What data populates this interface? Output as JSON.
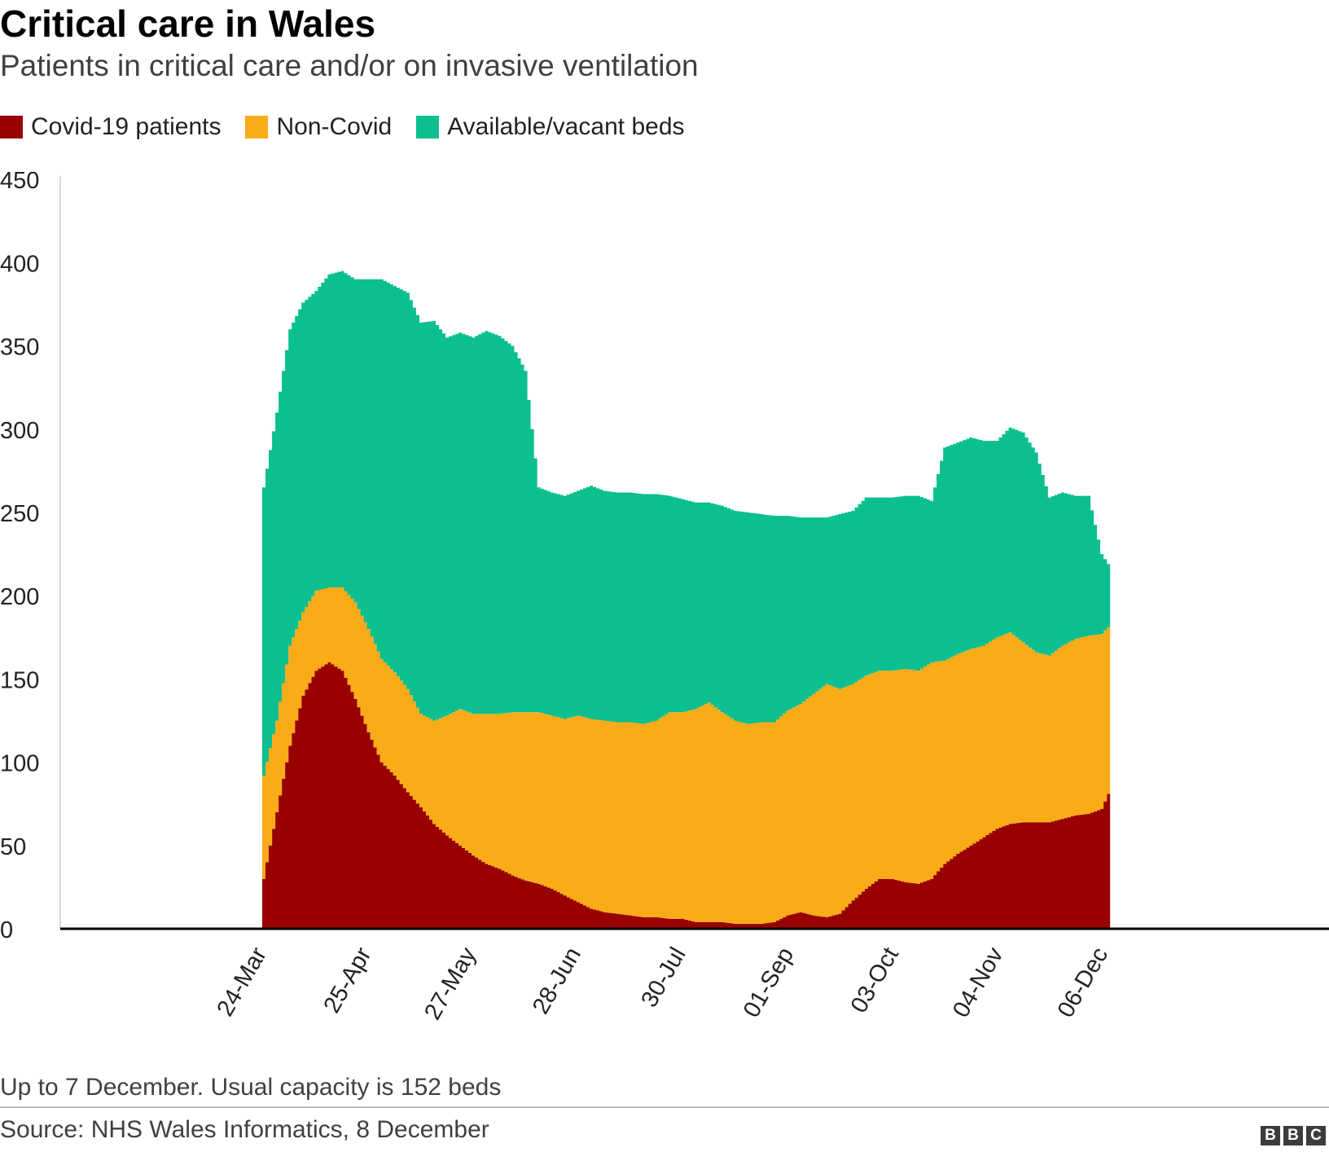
{
  "chart_data": {
    "type": "area",
    "stacked": true,
    "title": "Critical care in Wales",
    "subtitle": "Patients in critical care and/or on invasive ventilation",
    "x_tick_labels": [
      "24-Mar",
      "25-Apr",
      "27-May",
      "28-Jun",
      "30-Jul",
      "01-Sep",
      "03-Oct",
      "04-Nov",
      "06-Dec"
    ],
    "y_tick_labels": [
      "0",
      "50",
      "100",
      "150",
      "200",
      "250",
      "300",
      "350",
      "400",
      "450"
    ],
    "ylim": [
      0,
      450
    ],
    "grid": false,
    "legend_position": "top-left",
    "x_day_range": [
      "24-Mar",
      "07-Dec"
    ],
    "series": [
      {
        "name": "Covid-19 patients",
        "color": "#990000",
        "points": [
          [
            "24-Mar",
            30
          ],
          [
            "28-Mar",
            70
          ],
          [
            "01-Apr",
            110
          ],
          [
            "05-Apr",
            140
          ],
          [
            "09-Apr",
            155
          ],
          [
            "13-Apr",
            160
          ],
          [
            "17-Apr",
            155
          ],
          [
            "21-Apr",
            138
          ],
          [
            "25-Apr",
            118
          ],
          [
            "29-Apr",
            100
          ],
          [
            "03-May",
            92
          ],
          [
            "07-May",
            82
          ],
          [
            "11-May",
            73
          ],
          [
            "15-May",
            63
          ],
          [
            "19-May",
            56
          ],
          [
            "23-May",
            50
          ],
          [
            "27-May",
            44
          ],
          [
            "31-May",
            39
          ],
          [
            "04-Jun",
            36
          ],
          [
            "08-Jun",
            32
          ],
          [
            "12-Jun",
            29
          ],
          [
            "16-Jun",
            27
          ],
          [
            "20-Jun",
            24
          ],
          [
            "24-Jun",
            20
          ],
          [
            "28-Jun",
            16
          ],
          [
            "02-Jul",
            12
          ],
          [
            "06-Jul",
            10
          ],
          [
            "10-Jul",
            9
          ],
          [
            "14-Jul",
            8
          ],
          [
            "18-Jul",
            7
          ],
          [
            "22-Jul",
            7
          ],
          [
            "26-Jul",
            6
          ],
          [
            "30-Jul",
            6
          ],
          [
            "03-Aug",
            4
          ],
          [
            "07-Aug",
            4
          ],
          [
            "11-Aug",
            4
          ],
          [
            "15-Aug",
            3
          ],
          [
            "19-Aug",
            3
          ],
          [
            "23-Aug",
            3
          ],
          [
            "27-Aug",
            4
          ],
          [
            "31-Aug",
            8
          ],
          [
            "04-Sep",
            10
          ],
          [
            "08-Sep",
            8
          ],
          [
            "12-Sep",
            7
          ],
          [
            "16-Sep",
            9
          ],
          [
            "20-Sep",
            17
          ],
          [
            "24-Sep",
            24
          ],
          [
            "28-Sep",
            30
          ],
          [
            "02-Oct",
            30
          ],
          [
            "06-Oct",
            28
          ],
          [
            "10-Oct",
            27
          ],
          [
            "14-Oct",
            30
          ],
          [
            "18-Oct",
            39
          ],
          [
            "22-Oct",
            45
          ],
          [
            "26-Oct",
            50
          ],
          [
            "30-Oct",
            55
          ],
          [
            "03-Nov",
            60
          ],
          [
            "07-Nov",
            63
          ],
          [
            "11-Nov",
            64
          ],
          [
            "15-Nov",
            64
          ],
          [
            "19-Nov",
            64
          ],
          [
            "23-Nov",
            66
          ],
          [
            "27-Nov",
            68
          ],
          [
            "01-Dec",
            69
          ],
          [
            "05-Dec",
            72
          ],
          [
            "07-Dec",
            81
          ]
        ]
      },
      {
        "name": "Non-Covid",
        "color": "#faab18",
        "points": [
          [
            "24-Mar",
            62
          ],
          [
            "28-Mar",
            55
          ],
          [
            "01-Apr",
            60
          ],
          [
            "05-Apr",
            50
          ],
          [
            "09-Apr",
            48
          ],
          [
            "13-Apr",
            45
          ],
          [
            "17-Apr",
            50
          ],
          [
            "21-Apr",
            58
          ],
          [
            "25-Apr",
            62
          ],
          [
            "29-Apr",
            62
          ],
          [
            "03-May",
            62
          ],
          [
            "07-May",
            62
          ],
          [
            "11-May",
            56
          ],
          [
            "15-May",
            62
          ],
          [
            "19-May",
            72
          ],
          [
            "23-May",
            82
          ],
          [
            "27-May",
            85
          ],
          [
            "31-May",
            90
          ],
          [
            "04-Jun",
            93
          ],
          [
            "08-Jun",
            98
          ],
          [
            "12-Jun",
            101
          ],
          [
            "16-Jun",
            103
          ],
          [
            "20-Jun",
            104
          ],
          [
            "24-Jun",
            106
          ],
          [
            "28-Jun",
            112
          ],
          [
            "02-Jul",
            114
          ],
          [
            "06-Jul",
            115
          ],
          [
            "10-Jul",
            115
          ],
          [
            "14-Jul",
            116
          ],
          [
            "18-Jul",
            116
          ],
          [
            "22-Jul",
            118
          ],
          [
            "26-Jul",
            124
          ],
          [
            "30-Jul",
            124
          ],
          [
            "03-Aug",
            128
          ],
          [
            "07-Aug",
            132
          ],
          [
            "11-Aug",
            126
          ],
          [
            "15-Aug",
            122
          ],
          [
            "19-Aug",
            120
          ],
          [
            "23-Aug",
            121
          ],
          [
            "27-Aug",
            120
          ],
          [
            "31-Aug",
            123
          ],
          [
            "04-Sep",
            125
          ],
          [
            "08-Sep",
            133
          ],
          [
            "12-Sep",
            140
          ],
          [
            "16-Sep",
            135
          ],
          [
            "20-Sep",
            130
          ],
          [
            "24-Sep",
            128
          ],
          [
            "28-Sep",
            125
          ],
          [
            "02-Oct",
            125
          ],
          [
            "06-Oct",
            128
          ],
          [
            "10-Oct",
            128
          ],
          [
            "14-Oct",
            130
          ],
          [
            "18-Oct",
            122
          ],
          [
            "22-Oct",
            120
          ],
          [
            "26-Oct",
            118
          ],
          [
            "30-Oct",
            115
          ],
          [
            "03-Nov",
            115
          ],
          [
            "07-Nov",
            115
          ],
          [
            "11-Nov",
            108
          ],
          [
            "15-Nov",
            102
          ],
          [
            "19-Nov",
            100
          ],
          [
            "23-Nov",
            104
          ],
          [
            "27-Nov",
            106
          ],
          [
            "01-Dec",
            107
          ],
          [
            "05-Dec",
            105
          ],
          [
            "07-Dec",
            100
          ]
        ]
      },
      {
        "name": "Available/vacant beds",
        "color": "#0bbf90",
        "points": [
          [
            "24-Mar",
            173
          ],
          [
            "28-Mar",
            185
          ],
          [
            "01-Apr",
            190
          ],
          [
            "05-Apr",
            186
          ],
          [
            "09-Apr",
            180
          ],
          [
            "13-Apr",
            188
          ],
          [
            "17-Apr",
            190
          ],
          [
            "21-Apr",
            194
          ],
          [
            "25-Apr",
            210
          ],
          [
            "29-Apr",
            228
          ],
          [
            "03-May",
            232
          ],
          [
            "07-May",
            238
          ],
          [
            "11-May",
            235
          ],
          [
            "15-May",
            240
          ],
          [
            "19-May",
            227
          ],
          [
            "23-May",
            226
          ],
          [
            "27-May",
            226
          ],
          [
            "31-May",
            230
          ],
          [
            "04-Jun",
            227
          ],
          [
            "08-Jun",
            220
          ],
          [
            "12-Jun",
            205
          ],
          [
            "16-Jun",
            135
          ],
          [
            "20-Jun",
            134
          ],
          [
            "24-Jun",
            134
          ],
          [
            "28-Jun",
            135
          ],
          [
            "02-Jul",
            140
          ],
          [
            "06-Jul",
            138
          ],
          [
            "10-Jul",
            138
          ],
          [
            "14-Jul",
            138
          ],
          [
            "18-Jul",
            138
          ],
          [
            "22-Jul",
            136
          ],
          [
            "26-Jul",
            130
          ],
          [
            "30-Jul",
            128
          ],
          [
            "03-Aug",
            124
          ],
          [
            "07-Aug",
            120
          ],
          [
            "11-Aug",
            124
          ],
          [
            "15-Aug",
            126
          ],
          [
            "19-Aug",
            127
          ],
          [
            "23-Aug",
            125
          ],
          [
            "27-Aug",
            124
          ],
          [
            "31-Aug",
            117
          ],
          [
            "04-Sep",
            112
          ],
          [
            "08-Sep",
            106
          ],
          [
            "12-Sep",
            100
          ],
          [
            "16-Sep",
            105
          ],
          [
            "20-Sep",
            104
          ],
          [
            "24-Sep",
            107
          ],
          [
            "28-Sep",
            104
          ],
          [
            "02-Oct",
            104
          ],
          [
            "06-Oct",
            104
          ],
          [
            "10-Oct",
            105
          ],
          [
            "14-Oct",
            97
          ],
          [
            "18-Oct",
            128
          ],
          [
            "22-Oct",
            127
          ],
          [
            "26-Oct",
            127
          ],
          [
            "30-Oct",
            123
          ],
          [
            "03-Nov",
            118
          ],
          [
            "07-Nov",
            123
          ],
          [
            "11-Nov",
            126
          ],
          [
            "15-Nov",
            120
          ],
          [
            "19-Nov",
            95
          ],
          [
            "23-Nov",
            92
          ],
          [
            "27-Nov",
            86
          ],
          [
            "01-Dec",
            84
          ],
          [
            "05-Dec",
            48
          ],
          [
            "07-Dec",
            38
          ]
        ]
      }
    ],
    "annotations": []
  },
  "footnote": "Up to 7 December. Usual capacity is 152 beds",
  "source": "Source: NHS Wales Informatics, 8 December",
  "logo": {
    "letters": [
      "B",
      "B",
      "C"
    ]
  }
}
